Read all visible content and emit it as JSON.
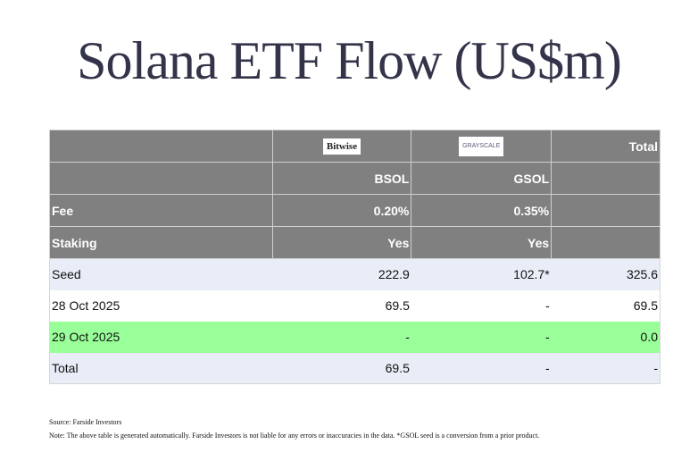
{
  "title": "Solana ETF Flow (US$m)",
  "table": {
    "header_logos": {
      "label": "",
      "bsol_logo": "Bitwise",
      "gsol_logo": "GRAYSCALE",
      "total": "Total"
    },
    "header_tickers": {
      "label": "",
      "bsol": "BSOL",
      "gsol": "GSOL",
      "total": ""
    },
    "header_fee": {
      "label": "Fee",
      "bsol": "0.20%",
      "gsol": "0.35%",
      "total": ""
    },
    "header_staking": {
      "label": "Staking",
      "bsol": "Yes",
      "gsol": "Yes",
      "total": ""
    },
    "rows": [
      {
        "label": "Seed",
        "bsol": "222.9",
        "gsol": "102.7*",
        "total": "325.6"
      },
      {
        "label": "28 Oct 2025",
        "bsol": "69.5",
        "gsol": "-",
        "total": "69.5"
      },
      {
        "label": "29 Oct 2025",
        "bsol": "-",
        "gsol": "-",
        "total": "0.0"
      },
      {
        "label": "Total",
        "bsol": "69.5",
        "gsol": "-",
        "total": "-"
      }
    ]
  },
  "colors": {
    "header_bg": "#808080",
    "seed_row_bg": "#e9edf7",
    "highlight_row_bg": "#99ff99",
    "title_color": "#33344a"
  },
  "footer": {
    "source": "Source: Farside Investors",
    "note": "Note: The above table is generated automatically. Farside Investors is not liable for any errors or inaccuracies in the data. *GSOL seed is a conversion from a prior product."
  }
}
